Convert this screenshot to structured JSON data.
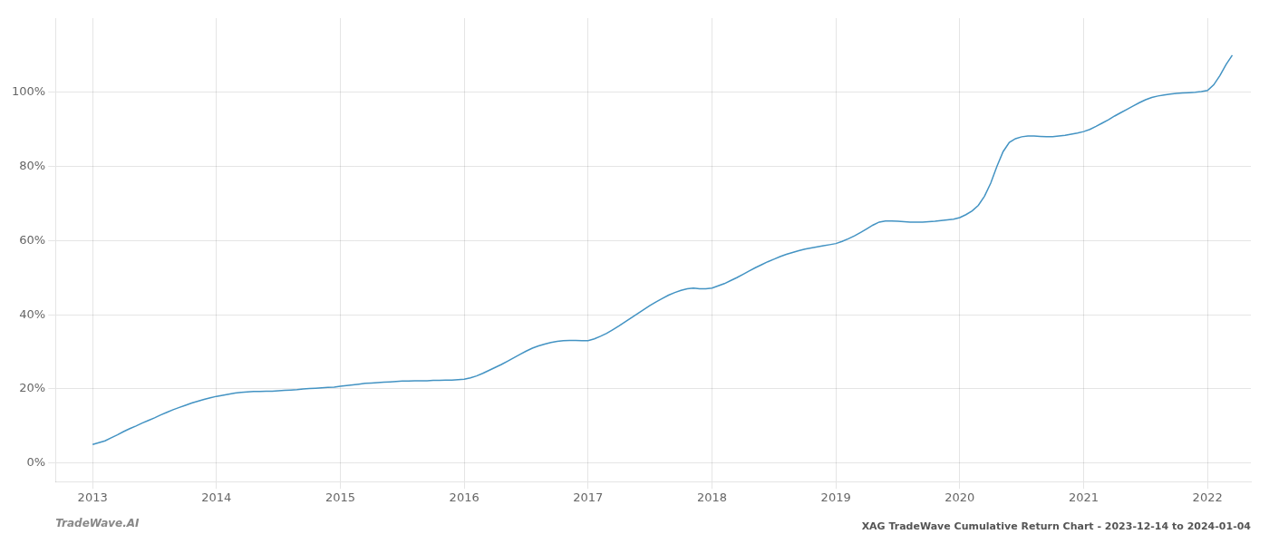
{
  "chart_data": {
    "type": "line",
    "title": "XAG TradeWave Cumulative Return Chart - 2023-12-14 to 2024-01-04",
    "annotations": [
      "TradeWave.AI"
    ],
    "color": "#4393c3",
    "grid": true,
    "xlim": [
      2012.7,
      2022.35
    ],
    "ylim": [
      -5,
      120
    ],
    "xticks": [
      2013,
      2014,
      2015,
      2016,
      2017,
      2018,
      2019,
      2020,
      2021,
      2022
    ],
    "yticks": [
      {
        "value": 0,
        "label": "0%"
      },
      {
        "value": 20,
        "label": "20%"
      },
      {
        "value": 40,
        "label": "40%"
      },
      {
        "value": 60,
        "label": "60%"
      },
      {
        "value": 80,
        "label": "80%"
      },
      {
        "value": 100,
        "label": "100%"
      }
    ],
    "x": [
      2013.0,
      2013.05,
      2013.1,
      2013.15,
      2013.2,
      2013.25,
      2013.3,
      2013.35,
      2013.4,
      2013.45,
      2013.5,
      2013.55,
      2013.6,
      2013.65,
      2013.7,
      2013.75,
      2013.8,
      2013.85,
      2013.9,
      2013.95,
      2014.0,
      2014.05,
      2014.1,
      2014.15,
      2014.2,
      2014.25,
      2014.3,
      2014.35,
      2014.4,
      2014.45,
      2014.5,
      2014.55,
      2014.6,
      2014.65,
      2014.7,
      2014.75,
      2014.8,
      2014.85,
      2014.9,
      2014.95,
      2015.0,
      2015.05,
      2015.1,
      2015.15,
      2015.2,
      2015.25,
      2015.3,
      2015.35,
      2015.4,
      2015.45,
      2015.5,
      2015.55,
      2015.6,
      2015.65,
      2015.7,
      2015.75,
      2015.8,
      2015.85,
      2015.9,
      2015.95,
      2016.0,
      2016.05,
      2016.1,
      2016.15,
      2016.2,
      2016.25,
      2016.3,
      2016.35,
      2016.4,
      2016.45,
      2016.5,
      2016.55,
      2016.6,
      2016.65,
      2016.7,
      2016.75,
      2016.8,
      2016.85,
      2016.9,
      2016.95,
      2017.0,
      2017.05,
      2017.1,
      2017.15,
      2017.2,
      2017.25,
      2017.3,
      2017.35,
      2017.4,
      2017.45,
      2017.5,
      2017.55,
      2017.6,
      2017.65,
      2017.7,
      2017.75,
      2017.8,
      2017.85,
      2017.9,
      2017.95,
      2018.0,
      2018.05,
      2018.1,
      2018.15,
      2018.2,
      2018.25,
      2018.3,
      2018.35,
      2018.4,
      2018.45,
      2018.5,
      2018.55,
      2018.6,
      2018.65,
      2018.7,
      2018.75,
      2018.8,
      2018.85,
      2018.9,
      2018.95,
      2019.0,
      2019.05,
      2019.1,
      2019.15,
      2019.2,
      2019.25,
      2019.3,
      2019.35,
      2019.4,
      2019.45,
      2019.5,
      2019.55,
      2019.6,
      2019.65,
      2019.7,
      2019.75,
      2019.8,
      2019.85,
      2019.9,
      2019.95,
      2020.0,
      2020.05,
      2020.1,
      2020.15,
      2020.2,
      2020.25,
      2020.3,
      2020.35,
      2020.4,
      2020.45,
      2020.5,
      2020.55,
      2020.6,
      2020.65,
      2020.7,
      2020.75,
      2020.8,
      2020.85,
      2020.9,
      2020.95,
      2021.0,
      2021.05,
      2021.1,
      2021.15,
      2021.2,
      2021.25,
      2021.3,
      2021.35,
      2021.4,
      2021.45,
      2021.5,
      2021.55,
      2021.6,
      2021.65,
      2021.7,
      2021.75,
      2021.8,
      2021.85,
      2021.9,
      2021.95,
      2022.0,
      2022.05,
      2022.1,
      2022.15,
      2022.2
    ],
    "values": [
      5.0,
      5.5,
      6.0,
      6.8,
      7.6,
      8.5,
      9.3,
      10.0,
      10.8,
      11.5,
      12.2,
      13.0,
      13.7,
      14.4,
      15.0,
      15.6,
      16.2,
      16.7,
      17.2,
      17.6,
      18.0,
      18.3,
      18.6,
      18.9,
      19.1,
      19.2,
      19.3,
      19.3,
      19.4,
      19.4,
      19.5,
      19.6,
      19.7,
      19.8,
      20.0,
      20.1,
      20.2,
      20.3,
      20.4,
      20.5,
      20.7,
      20.9,
      21.1,
      21.3,
      21.5,
      21.6,
      21.7,
      21.8,
      21.9,
      22.0,
      22.1,
      22.1,
      22.2,
      22.2,
      22.2,
      22.3,
      22.3,
      22.4,
      22.4,
      22.5,
      22.6,
      23.0,
      23.5,
      24.2,
      25.0,
      25.8,
      26.6,
      27.5,
      28.4,
      29.3,
      30.2,
      31.0,
      31.6,
      32.1,
      32.5,
      32.8,
      33.0,
      33.1,
      33.1,
      33.0,
      33.0,
      33.5,
      34.2,
      35.0,
      36.0,
      37.0,
      38.1,
      39.2,
      40.3,
      41.4,
      42.5,
      43.5,
      44.4,
      45.3,
      46.0,
      46.6,
      47.0,
      47.2,
      47.0,
      47.0,
      47.2,
      47.8,
      48.4,
      49.2,
      50.0,
      50.9,
      51.8,
      52.7,
      53.5,
      54.3,
      55.0,
      55.7,
      56.3,
      56.8,
      57.3,
      57.7,
      58.0,
      58.3,
      58.6,
      58.9,
      59.2,
      59.8,
      60.5,
      61.3,
      62.2,
      63.2,
      64.2,
      65.0,
      65.3,
      65.3,
      65.2,
      65.1,
      65.0,
      65.0,
      65.0,
      65.1,
      65.2,
      65.4,
      65.6,
      65.8,
      66.2,
      67.0,
      68.0,
      69.5,
      72.0,
      75.5,
      80.0,
      84.0,
      86.5,
      87.5,
      88.0,
      88.2,
      88.2,
      88.1,
      88.0,
      88.0,
      88.2,
      88.4,
      88.7,
      89.0,
      89.4,
      90.0,
      90.8,
      91.7,
      92.6,
      93.6,
      94.5,
      95.4,
      96.3,
      97.2,
      98.0,
      98.6,
      99.0,
      99.3,
      99.5,
      99.7,
      99.8,
      99.9,
      100.0,
      100.2,
      100.5,
      102.0,
      104.5,
      107.5,
      110.0
    ]
  }
}
